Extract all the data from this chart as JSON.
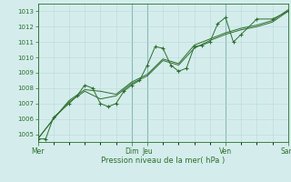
{
  "title": "",
  "xlabel": "Pression niveau de la mer( hPa )",
  "bg_color": "#d4edec",
  "grid_color_minor": "#b8d8d8",
  "grid_color_major": "#8ab8b8",
  "line_color": "#2d6e2d",
  "dark_line_color": "#3a5a3a",
  "ylim": [
    1004.5,
    1013.5
  ],
  "xlim": [
    0,
    384
  ],
  "ytick_values": [
    1005,
    1006,
    1007,
    1008,
    1009,
    1010,
    1011,
    1012,
    1013
  ],
  "day_positions": [
    0,
    144,
    168,
    288,
    384
  ],
  "day_labels": [
    "Mer",
    "Dim",
    "Jeu",
    "Ven",
    "Sam"
  ],
  "series1": [
    [
      0,
      1004.7
    ],
    [
      12,
      1004.7
    ],
    [
      24,
      1006.1
    ],
    [
      48,
      1007.0
    ],
    [
      60,
      1007.5
    ],
    [
      72,
      1008.2
    ],
    [
      84,
      1008.0
    ],
    [
      96,
      1007.0
    ],
    [
      108,
      1006.8
    ],
    [
      120,
      1007.0
    ],
    [
      132,
      1007.8
    ],
    [
      144,
      1008.2
    ],
    [
      156,
      1008.5
    ],
    [
      168,
      1009.5
    ],
    [
      180,
      1010.7
    ],
    [
      192,
      1010.6
    ],
    [
      204,
      1009.5
    ],
    [
      216,
      1009.1
    ],
    [
      228,
      1009.3
    ],
    [
      240,
      1010.7
    ],
    [
      252,
      1010.8
    ],
    [
      264,
      1011.0
    ],
    [
      276,
      1012.2
    ],
    [
      288,
      1012.6
    ],
    [
      300,
      1011.0
    ],
    [
      312,
      1011.5
    ],
    [
      336,
      1012.5
    ],
    [
      360,
      1012.5
    ],
    [
      384,
      1013.0
    ]
  ],
  "series2": [
    [
      0,
      1004.7
    ],
    [
      24,
      1006.0
    ],
    [
      48,
      1007.1
    ],
    [
      72,
      1007.8
    ],
    [
      96,
      1007.3
    ],
    [
      120,
      1007.5
    ],
    [
      144,
      1008.3
    ],
    [
      168,
      1008.8
    ],
    [
      192,
      1009.8
    ],
    [
      216,
      1009.5
    ],
    [
      240,
      1010.6
    ],
    [
      264,
      1011.1
    ],
    [
      288,
      1011.5
    ],
    [
      312,
      1011.8
    ],
    [
      336,
      1012.0
    ],
    [
      360,
      1012.3
    ],
    [
      384,
      1013.0
    ]
  ],
  "series3": [
    [
      0,
      1004.7
    ],
    [
      24,
      1006.0
    ],
    [
      48,
      1007.2
    ],
    [
      72,
      1007.9
    ],
    [
      96,
      1007.8
    ],
    [
      120,
      1007.6
    ],
    [
      144,
      1008.4
    ],
    [
      168,
      1008.9
    ],
    [
      192,
      1009.9
    ],
    [
      216,
      1009.6
    ],
    [
      240,
      1010.8
    ],
    [
      264,
      1011.2
    ],
    [
      288,
      1011.6
    ],
    [
      312,
      1011.9
    ],
    [
      336,
      1012.1
    ],
    [
      360,
      1012.4
    ],
    [
      384,
      1013.1
    ]
  ]
}
